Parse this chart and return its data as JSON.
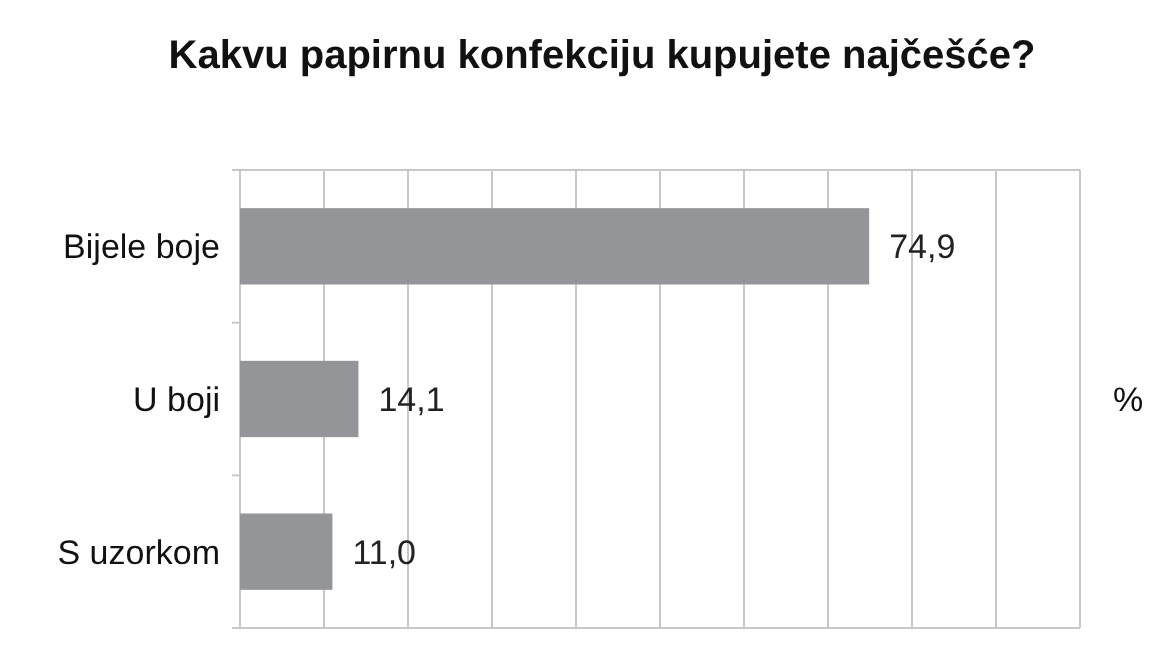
{
  "chart_data": {
    "type": "bar",
    "orientation": "horizontal",
    "title": "Kakvu papirnu konfekciju kupujete najčešće?",
    "xlabel": "%",
    "categories": [
      "Bijele boje",
      "U boji",
      "S uzorkom"
    ],
    "values": [
      74.9,
      14.1,
      11.0
    ],
    "value_labels": [
      "74,9",
      "14,1",
      "11,0"
    ],
    "color": "#939598",
    "xlim": [
      0,
      100
    ],
    "xticks": [
      {
        "value": 0,
        "label": null
      },
      {
        "value": 10,
        "label": null
      },
      {
        "value": 20,
        "label": null
      },
      {
        "value": 30,
        "label": null
      },
      {
        "value": 40,
        "label": null
      },
      {
        "value": 50,
        "label": null
      },
      {
        "value": 60,
        "label": null
      },
      {
        "value": 70,
        "label": null
      },
      {
        "value": 80,
        "label": null
      },
      {
        "value": 90,
        "label": null
      },
      {
        "value": 100,
        "label": null
      }
    ],
    "grid": "x",
    "tick_labels": "y"
  }
}
